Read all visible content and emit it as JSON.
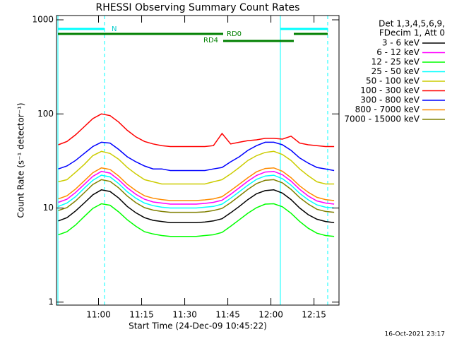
{
  "chart_data": {
    "type": "line",
    "title": "RHESSI Observing Summary Count Rates",
    "x_label": "Start Time (24-Dec-09 10:45:22)",
    "y_label": "Count Rate (s⁻¹ detector⁻¹)",
    "legend_header": [
      "Det 1,3,4,5,6,9,",
      "FDecim 1, Att 0"
    ],
    "annotations": [
      "N",
      "RD0",
      "RD4"
    ],
    "footer": "16-Oct-2021 23:17",
    "ylog": true,
    "xlim": [
      645.37,
      743.7
    ],
    "xticks": [
      {
        "value": 660,
        "label": "11:00"
      },
      {
        "value": 675,
        "label": "11:15"
      },
      {
        "value": 690,
        "label": "11:30"
      },
      {
        "value": 705,
        "label": "11:45"
      },
      {
        "value": 720,
        "label": "12:00"
      },
      {
        "value": 735,
        "label": "12:15"
      }
    ],
    "ylim": [
      0.93,
      1110
    ],
    "yticks": [
      1,
      10,
      100,
      1000
    ],
    "x": [
      646,
      649,
      652,
      655,
      658,
      661,
      664,
      667,
      670,
      673,
      676,
      679,
      682,
      685,
      688,
      691,
      694,
      697,
      700,
      703,
      706,
      709,
      712,
      715,
      718,
      721,
      724,
      727,
      730,
      733,
      736,
      739,
      742
    ],
    "series": [
      {
        "name": "3 - 6 keV",
        "color": "#000000",
        "values": [
          7.3,
          7.9,
          9.3,
          11.3,
          13.8,
          15.6,
          15,
          12.8,
          10.4,
          8.9,
          7.9,
          7.4,
          7.2,
          7,
          7,
          7,
          7,
          7.1,
          7.3,
          7.7,
          8.9,
          10.4,
          12.3,
          14.2,
          15.3,
          15.6,
          14.4,
          12.3,
          10,
          8.5,
          7.6,
          7.2,
          7
        ]
      },
      {
        "name": "6 - 12 keV",
        "color": "#ff00ff",
        "values": [
          11.5,
          12.4,
          14.6,
          17.8,
          21.7,
          24.5,
          23.5,
          20,
          16.4,
          14,
          12.4,
          11.6,
          11.3,
          11,
          11,
          11,
          11,
          11.2,
          11.5,
          12.1,
          14,
          16.4,
          19.3,
          22.2,
          24.1,
          24.5,
          22.6,
          19.3,
          15.8,
          13.4,
          11.9,
          11.3,
          11
        ]
      },
      {
        "name": "12 - 25 keV",
        "color": "#00ff00",
        "values": [
          5.2,
          5.6,
          6.6,
          8.1,
          9.9,
          11.1,
          10.7,
          9.1,
          7.5,
          6.4,
          5.6,
          5.3,
          5.1,
          5,
          5,
          5,
          5,
          5.1,
          5.2,
          5.5,
          6.4,
          7.5,
          8.8,
          10.1,
          11,
          11.1,
          10.3,
          8.8,
          7.2,
          6.1,
          5.4,
          5.1,
          5
        ]
      },
      {
        "name": "25 - 50 keV",
        "color": "#00ffff",
        "values": [
          10.4,
          11.3,
          13.2,
          16.2,
          19.7,
          22.3,
          21.4,
          18.2,
          14.9,
          12.7,
          11.3,
          10.6,
          10.2,
          10,
          10,
          10,
          10,
          10.2,
          10.4,
          11,
          12.7,
          14.9,
          17.5,
          20.2,
          21.9,
          22.3,
          20.5,
          17.5,
          14.3,
          12.2,
          10.8,
          10.2,
          10
        ]
      },
      {
        "name": "50 - 100 keV",
        "color": "#cccc00",
        "values": [
          19,
          20,
          24,
          29,
          36,
          40,
          38,
          33,
          27,
          23,
          20,
          19,
          18,
          18,
          18,
          18,
          18,
          18,
          19,
          20,
          23,
          27,
          32,
          36,
          39,
          40,
          37,
          32,
          26,
          22,
          19,
          18,
          18
        ]
      },
      {
        "name": "100 - 300 keV",
        "color": "#ff0000",
        "values": [
          47,
          51,
          60,
          73,
          89,
          100,
          96,
          82,
          67,
          57,
          51,
          48,
          46,
          45,
          45,
          45,
          45,
          45,
          46,
          62,
          48,
          50,
          52,
          53,
          55,
          55,
          54,
          58,
          49,
          47,
          46,
          45,
          45
        ]
      },
      {
        "name": "300 - 800 keV",
        "color": "#0000ff",
        "values": [
          26,
          28,
          32,
          38,
          45,
          50,
          49,
          42,
          35,
          31,
          28,
          26,
          26,
          25,
          25,
          25,
          25,
          25,
          26,
          27,
          31,
          35,
          41,
          46,
          50,
          50,
          47,
          41,
          34,
          30,
          27,
          26,
          25
        ]
      },
      {
        "name": "800 - 7000 keV",
        "color": "#ff8c00",
        "values": [
          12.5,
          13.5,
          15.9,
          19.4,
          23.7,
          26.7,
          25.7,
          21.9,
          17.9,
          15.3,
          13.5,
          12.7,
          12.3,
          12,
          12,
          12,
          12,
          12.2,
          12.5,
          13.2,
          15.3,
          17.9,
          21,
          24.3,
          26.3,
          26.7,
          24.6,
          21,
          17.2,
          14.7,
          13,
          12.3,
          12
        ]
      },
      {
        "name": "7000 - 15000 keV",
        "color": "#808000",
        "values": [
          9.4,
          10.1,
          11.9,
          14.5,
          17.8,
          20,
          19.2,
          16.4,
          13.4,
          11.4,
          10.1,
          9.5,
          9.2,
          9,
          9,
          9,
          9,
          9.1,
          9.4,
          9.9,
          11.4,
          13.4,
          15.8,
          18.2,
          19.7,
          20,
          18.5,
          15.8,
          12.9,
          11,
          9.7,
          9.2,
          9
        ]
      }
    ]
  }
}
